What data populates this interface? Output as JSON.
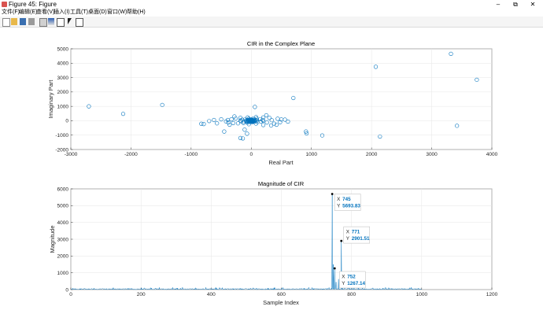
{
  "window": {
    "title": "Figure 45: Figure",
    "minimize_label": "–",
    "maximize_label": "⧉",
    "close_label": "✕"
  },
  "menu": [
    {
      "label": "文件(F)"
    },
    {
      "label": "编辑(E)"
    },
    {
      "label": "查看(V)"
    },
    {
      "label": "插入(I)"
    },
    {
      "label": "工具(T)"
    },
    {
      "label": "桌面(D)"
    },
    {
      "label": "窗口(W)"
    },
    {
      "label": "帮助(H)"
    }
  ],
  "toolbar": {
    "icons": [
      "new-figure-icon",
      "open-file-icon",
      "save-icon",
      "print-icon",
      "link-plot-icon",
      "insert-colorbar-icon",
      "insert-legend-icon",
      "pointer-icon",
      "property-editor-icon"
    ],
    "accent": "#0072bd"
  },
  "chart_data": [
    {
      "type": "scatter",
      "title": "CIR in the Complex Plane",
      "xlabel": "Real Part",
      "ylabel": "Imaginary Part",
      "xlim": [
        -3000,
        4000
      ],
      "ylim": [
        -2000,
        5000
      ],
      "xticks": [
        "-3000",
        "-2000",
        "-1000",
        "0",
        "1000",
        "2000",
        "3000",
        "4000"
      ],
      "yticks": [
        "-2000",
        "-1000",
        "0",
        "1000",
        "2000",
        "3000",
        "4000",
        "5000"
      ],
      "grid": true,
      "marker_color": "#0072bd",
      "points": [
        [
          -2700,
          1000
        ],
        [
          -2130,
          480
        ],
        [
          -1480,
          1100
        ],
        [
          700,
          1580
        ],
        [
          2070,
          3750
        ],
        [
          3320,
          4650
        ],
        [
          3750,
          2850
        ],
        [
          2140,
          -1100
        ],
        [
          3420,
          -350
        ],
        [
          1180,
          -1020
        ],
        [
          910,
          -750
        ],
        [
          920,
          -880
        ],
        [
          -180,
          -1200
        ],
        [
          -140,
          -1230
        ],
        [
          -450,
          -750
        ],
        [
          60,
          960
        ],
        [
          -790,
          -230
        ],
        [
          -830,
          -210
        ],
        [
          -570,
          -180
        ],
        [
          -360,
          -280
        ],
        [
          -40,
          -240
        ],
        [
          80,
          -200
        ],
        [
          200,
          -300
        ],
        [
          330,
          -330
        ],
        [
          420,
          -280
        ],
        [
          480,
          -100
        ],
        [
          500,
          90
        ],
        [
          440,
          140
        ],
        [
          300,
          200
        ],
        [
          200,
          230
        ],
        [
          80,
          250
        ],
        [
          -60,
          230
        ],
        [
          -180,
          200
        ],
        [
          -260,
          150
        ],
        [
          -330,
          100
        ],
        [
          -390,
          50
        ],
        [
          -420,
          -50
        ],
        [
          -380,
          -120
        ],
        [
          -300,
          -160
        ],
        [
          -220,
          -180
        ],
        [
          -130,
          -150
        ],
        [
          -60,
          -120
        ],
        [
          20,
          -110
        ],
        [
          100,
          -90
        ],
        [
          160,
          -60
        ],
        [
          200,
          0
        ],
        [
          190,
          60
        ],
        [
          150,
          110
        ],
        [
          90,
          140
        ],
        [
          30,
          150
        ],
        [
          -40,
          140
        ],
        [
          -100,
          110
        ],
        [
          -150,
          70
        ],
        [
          -180,
          20
        ],
        [
          -170,
          -30
        ],
        [
          -130,
          -70
        ],
        [
          -80,
          -90
        ],
        [
          -20,
          -80
        ],
        [
          30,
          -60
        ],
        [
          70,
          -30
        ],
        [
          90,
          10
        ],
        [
          80,
          50
        ],
        [
          50,
          80
        ],
        [
          10,
          90
        ],
        [
          -30,
          80
        ],
        [
          -60,
          60
        ],
        [
          -80,
          30
        ],
        [
          -85,
          0
        ],
        [
          -70,
          -30
        ],
        [
          -40,
          -50
        ],
        [
          0,
          -55
        ],
        [
          30,
          -40
        ],
        [
          50,
          -15
        ],
        [
          55,
          10
        ],
        [
          45,
          35
        ],
        [
          20,
          50
        ],
        [
          -10,
          55
        ],
        [
          -35,
          45
        ],
        [
          -50,
          25
        ],
        [
          -55,
          0
        ],
        [
          -45,
          -20
        ],
        [
          -25,
          -35
        ],
        [
          0,
          -40
        ],
        [
          20,
          -30
        ],
        [
          30,
          -10
        ],
        [
          30,
          10
        ],
        [
          20,
          25
        ],
        [
          0,
          30
        ],
        [
          -20,
          25
        ],
        [
          -30,
          10
        ],
        [
          -30,
          -10
        ],
        [
          -15,
          -25
        ],
        [
          5,
          -20
        ],
        [
          15,
          -5
        ],
        [
          10,
          10
        ],
        [
          -5,
          15
        ],
        [
          -12,
          5
        ],
        [
          -8,
          -8
        ],
        [
          260,
          -120
        ],
        [
          340,
          40
        ],
        [
          380,
          -200
        ],
        [
          -500,
          100
        ],
        [
          -620,
          50
        ],
        [
          -700,
          -20
        ],
        [
          610,
          -60
        ],
        [
          560,
          80
        ],
        [
          -280,
          300
        ],
        [
          250,
          380
        ],
        [
          -110,
          -620
        ],
        [
          -70,
          -900
        ]
      ]
    },
    {
      "type": "line",
      "title": "Magnitude of CIR",
      "xlabel": "Sample Index",
      "ylabel": "Magnitude",
      "xlim": [
        0,
        1200
      ],
      "ylim": [
        0,
        6000
      ],
      "xticks": [
        "0",
        "200",
        "400",
        "600",
        "800",
        "1000",
        "1200"
      ],
      "yticks": [
        "0",
        "1000",
        "2000",
        "3000",
        "4000",
        "5000",
        "6000"
      ],
      "grid": true,
      "line_color": "#0072bd",
      "noise_range": [
        0,
        1000
      ],
      "noise_level": 60,
      "peaks": [
        {
          "x": 745,
          "y": 5693.83
        },
        {
          "x": 748,
          "y": 1500
        },
        {
          "x": 752,
          "y": 1267.14
        },
        {
          "x": 756,
          "y": 450
        },
        {
          "x": 763,
          "y": 620
        },
        {
          "x": 771,
          "y": 2901.51
        },
        {
          "x": 774,
          "y": 700
        },
        {
          "x": 780,
          "y": 350
        },
        {
          "x": 790,
          "y": 250
        }
      ],
      "datatips": [
        {
          "x_label": "X",
          "x_value": "745",
          "y_label": "Y",
          "y_value": "5693.83"
        },
        {
          "x_label": "X",
          "x_value": "771",
          "y_label": "Y",
          "y_value": "2901.51"
        },
        {
          "x_label": "X",
          "x_value": "752",
          "y_label": "Y",
          "y_value": "1267.14"
        }
      ]
    }
  ]
}
